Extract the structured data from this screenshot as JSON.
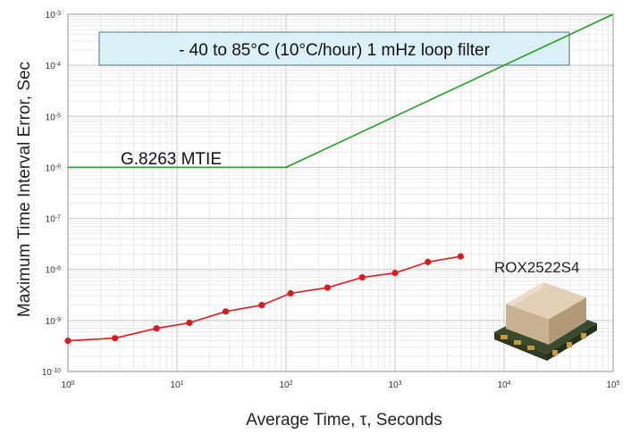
{
  "chart_data": {
    "type": "line",
    "xlabel": "Average Time, τ, Seconds",
    "ylabel": "Maximum Time Interval Error, Sec",
    "xscale": "log",
    "yscale": "log",
    "xlim": [
      1,
      100000
    ],
    "ylim": [
      1e-10,
      0.001
    ],
    "grid": true,
    "x_ticks": [
      {
        "base": "10",
        "exp": "0"
      },
      {
        "base": "10",
        "exp": "1"
      },
      {
        "base": "10",
        "exp": "2"
      },
      {
        "base": "10",
        "exp": "3"
      },
      {
        "base": "10",
        "exp": "4"
      },
      {
        "base": "10",
        "exp": "5"
      }
    ],
    "y_ticks": [
      {
        "base": "10",
        "exp": "-3"
      },
      {
        "base": "10",
        "exp": "-4"
      },
      {
        "base": "10",
        "exp": "-5"
      },
      {
        "base": "10",
        "exp": "-6"
      },
      {
        "base": "10",
        "exp": "-7"
      },
      {
        "base": "10",
        "exp": "-8"
      },
      {
        "base": "10",
        "exp": "-9"
      },
      {
        "base": "10",
        "exp": "-10"
      }
    ],
    "annotations": {
      "condition_box": "- 40 to 85°C (10°C/hour) 1 mHz loop filter",
      "mask_label": "G.8263 MTIE",
      "product_label": "ROX2522S4"
    },
    "series": [
      {
        "name": "G.8263 MTIE",
        "color": "#22a022",
        "marker": "none",
        "x": [
          1,
          100,
          100000
        ],
        "y": [
          1e-06,
          1e-06,
          0.001
        ]
      },
      {
        "name": "ROX2522S4",
        "color": "#e0191b",
        "marker": "circle",
        "x": [
          1,
          2.7,
          6.5,
          13,
          28,
          60,
          110,
          240,
          500,
          1000,
          2000,
          4000
        ],
        "y": [
          4e-10,
          4.5e-10,
          7e-10,
          9e-10,
          1.5e-09,
          2e-09,
          3.4e-09,
          4.4e-09,
          7e-09,
          8.5e-09,
          1.4e-08,
          1.8e-08
        ]
      }
    ]
  }
}
